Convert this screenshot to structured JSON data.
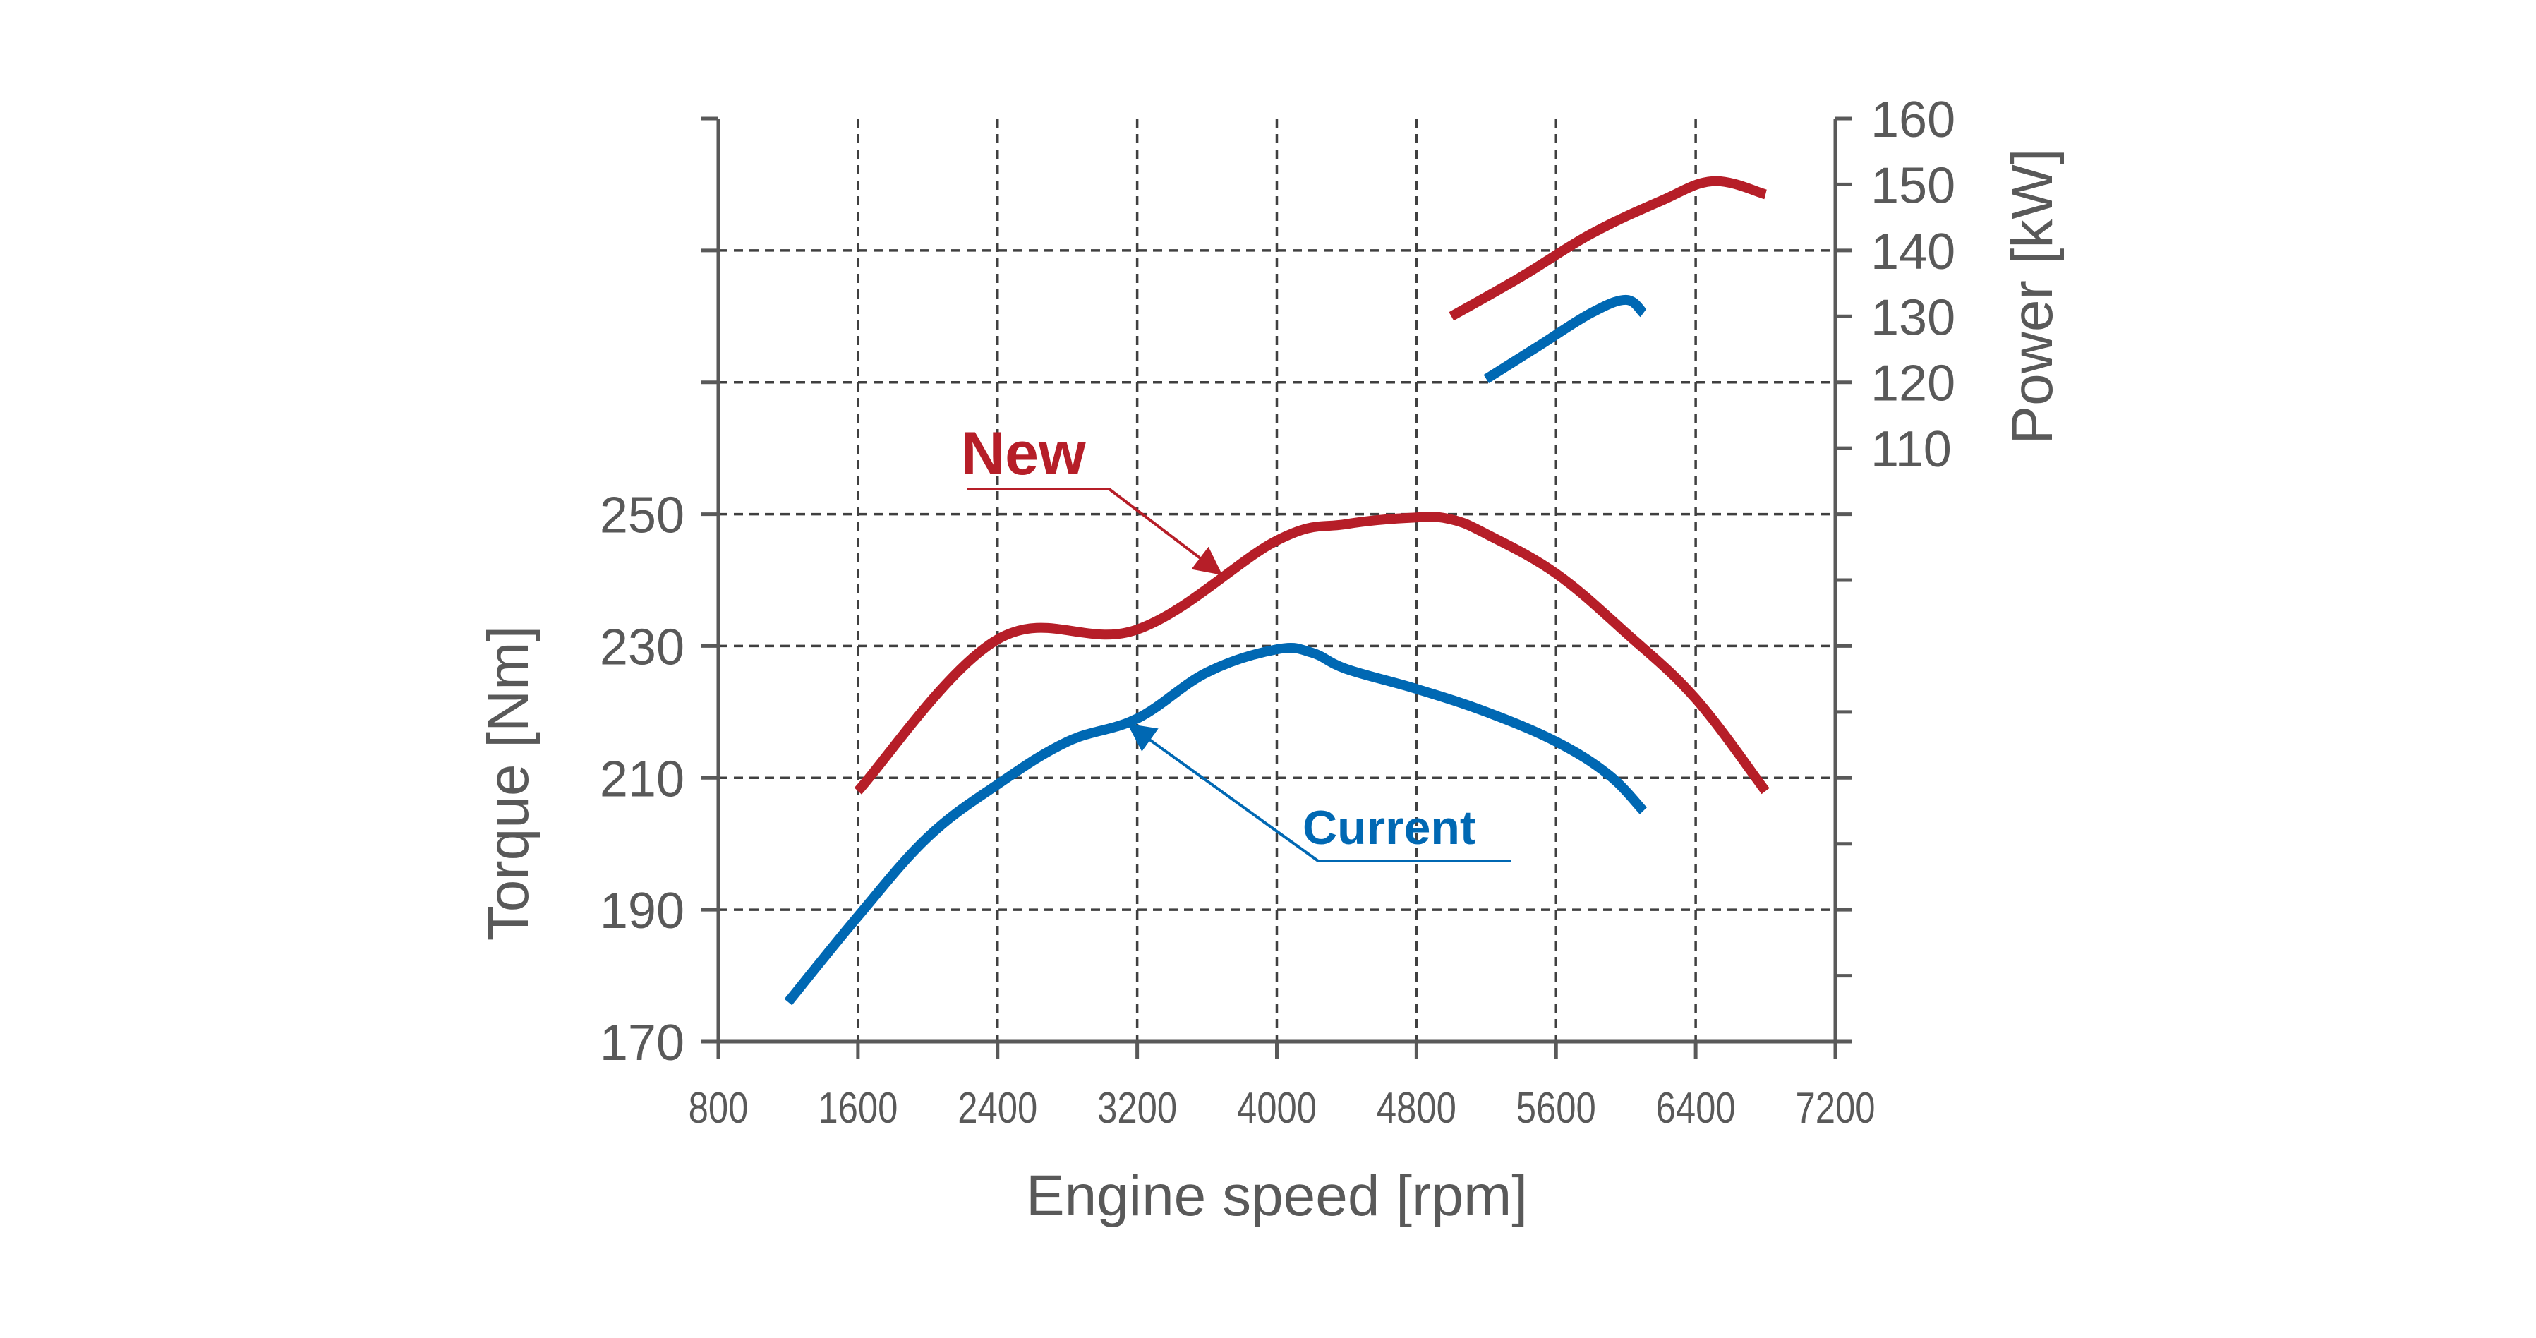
{
  "colors": {
    "new": "#B61E28",
    "current": "#0068B3",
    "axis": "#595959",
    "grid": "#404040"
  },
  "chart_data": {
    "type": "line",
    "xlabel": "Engine speed [rpm]",
    "ylabel_left": "Torque [Nm]",
    "ylabel_right": "Power [kW]",
    "xlim": [
      800,
      7200
    ],
    "x_ticks": [
      "800",
      "1600",
      "2400",
      "3200",
      "4000",
      "4800",
      "5600",
      "6400",
      "7200"
    ],
    "ylim_left": [
      170,
      310
    ],
    "y_ticks_left": [
      "170",
      "190",
      "210",
      "230",
      "250"
    ],
    "ylim_right": [
      20,
      160
    ],
    "y_ticks_right": [
      "110",
      "120",
      "130",
      "140",
      "150",
      "160"
    ],
    "grid": true,
    "series": [
      {
        "name": "New",
        "label": "New",
        "metric": "torque",
        "axis": "left",
        "x": [
          1600,
          2400,
          3200,
          4000,
          4400,
          4800,
          5000,
          5200,
          5600,
          6000,
          6400,
          6800
        ],
        "y": [
          208,
          231,
          232.5,
          246,
          248.5,
          249.5,
          249.2,
          247,
          241,
          232,
          222,
          208
        ]
      },
      {
        "name": "Current",
        "label": "Current",
        "metric": "torque",
        "axis": "left",
        "x": [
          1200,
          1600,
          2000,
          2400,
          2800,
          3200,
          3600,
          4000,
          4200,
          4400,
          4800,
          5200,
          5600,
          5900,
          6100
        ],
        "y": [
          176,
          189,
          201,
          209,
          215.5,
          219,
          226,
          229.5,
          229,
          226.5,
          223.5,
          220,
          215.5,
          210.5,
          205
        ]
      },
      {
        "name": "New",
        "metric": "power",
        "axis": "right",
        "x": [
          5000,
          5400,
          5800,
          6200,
          6500,
          6800
        ],
        "y": [
          130,
          136,
          142.5,
          147.5,
          150.5,
          148.5
        ]
      },
      {
        "name": "Current",
        "metric": "power",
        "axis": "right",
        "x": [
          5200,
          5500,
          5800,
          6000,
          6100
        ],
        "y": [
          120.5,
          125.5,
          130.5,
          132.5,
          130.5
        ]
      }
    ]
  }
}
